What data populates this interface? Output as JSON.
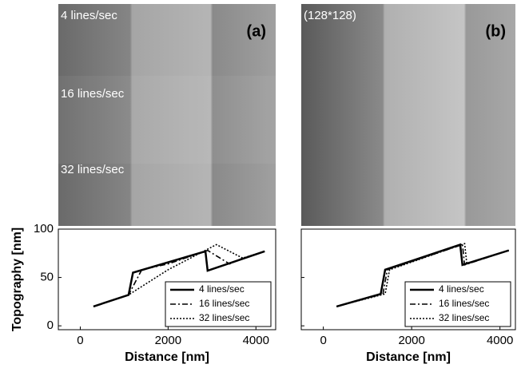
{
  "chart_data": [
    {
      "type": "line",
      "panel_label": "(a)",
      "annotations": [
        "4 lines/sec",
        "16 lines/sec",
        "32 lines/sec"
      ],
      "xlabel": "Distance [nm]",
      "ylabel": "Topography [nm]",
      "xlim": [
        -500,
        4450
      ],
      "ylim": [
        -4,
        100
      ],
      "xticks": [
        0,
        2000,
        4000
      ],
      "yticks": [
        0,
        50,
        100
      ],
      "legend": "lower right",
      "series": [
        {
          "name": "4 lines/sec",
          "color": "#000000",
          "dash": "solid",
          "x": [
            300,
            1100,
            1200,
            2850,
            2900,
            4200
          ],
          "values": [
            20,
            32,
            55,
            77,
            57,
            77
          ]
        },
        {
          "name": "16 lines/sec",
          "color": "#000000",
          "dash": "dashdot",
          "x": [
            300,
            1100,
            1400,
            2000,
            2900,
            3400,
            3700,
            4200
          ],
          "values": [
            20,
            32,
            58,
            64,
            78,
            64,
            70,
            77
          ]
        },
        {
          "name": "32 lines/sec",
          "color": "#000000",
          "dash": "dotted",
          "x": [
            300,
            1100,
            2000,
            3100,
            3700,
            4200
          ],
          "values": [
            20,
            32,
            58,
            84,
            70,
            77
          ]
        }
      ]
    },
    {
      "type": "line",
      "panel_label": "(b)",
      "annotations": [
        "(128*128)"
      ],
      "xlabel": "Distance [nm]",
      "xlim": [
        -500,
        4350
      ],
      "ylim": [
        -4,
        100
      ],
      "xticks": [
        0,
        2000,
        4000
      ],
      "yticks": [
        0,
        50,
        100
      ],
      "legend": "lower right",
      "series": [
        {
          "name": "4 lines/sec",
          "color": "#000000",
          "dash": "solid",
          "x": [
            300,
            1300,
            1400,
            3100,
            3150,
            4200
          ],
          "values": [
            20,
            33,
            58,
            84,
            63,
            78
          ]
        },
        {
          "name": "16 lines/sec",
          "color": "#000000",
          "dash": "dashdot",
          "x": [
            300,
            1350,
            1450,
            3150,
            3200,
            4200
          ],
          "values": [
            20,
            33,
            58,
            84,
            63,
            78
          ]
        },
        {
          "name": "32 lines/sec",
          "color": "#000000",
          "dash": "dotted",
          "x": [
            300,
            1400,
            1500,
            3200,
            3250,
            4200
          ],
          "values": [
            20,
            33,
            58,
            85,
            64,
            78
          ]
        }
      ]
    }
  ]
}
